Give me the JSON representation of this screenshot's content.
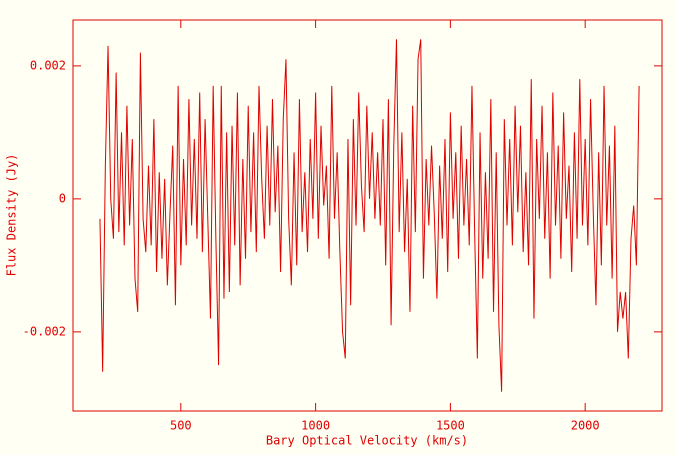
{
  "chart_data": {
    "type": "line",
    "xlabel": "Bary Optical Velocity (km/s)",
    "ylabel": "Flux Density (Jy)",
    "color": "#e00000",
    "xlim": [
      100,
      2285
    ],
    "ylim": [
      -0.00319,
      0.00269
    ],
    "xticks": [
      500,
      1000,
      1500,
      2000
    ],
    "yticks": [
      -0.002,
      0,
      0.002
    ],
    "x": [
      200,
      210,
      220,
      230,
      240,
      250,
      260,
      270,
      280,
      290,
      300,
      310,
      320,
      330,
      340,
      350,
      360,
      370,
      380,
      390,
      400,
      410,
      420,
      430,
      440,
      450,
      460,
      470,
      480,
      490,
      500,
      510,
      520,
      530,
      540,
      550,
      560,
      570,
      580,
      590,
      600,
      610,
      620,
      630,
      640,
      650,
      660,
      670,
      680,
      690,
      700,
      710,
      720,
      730,
      740,
      750,
      760,
      770,
      780,
      790,
      800,
      810,
      820,
      830,
      840,
      850,
      860,
      870,
      880,
      890,
      900,
      910,
      920,
      930,
      940,
      950,
      960,
      970,
      980,
      990,
      1000,
      1010,
      1020,
      1030,
      1040,
      1050,
      1060,
      1070,
      1080,
      1090,
      1100,
      1110,
      1120,
      1130,
      1140,
      1150,
      1160,
      1170,
      1180,
      1190,
      1200,
      1210,
      1220,
      1230,
      1240,
      1250,
      1260,
      1270,
      1280,
      1290,
      1300,
      1310,
      1320,
      1330,
      1340,
      1350,
      1360,
      1370,
      1380,
      1390,
      1400,
      1410,
      1420,
      1430,
      1440,
      1450,
      1460,
      1470,
      1480,
      1490,
      1500,
      1510,
      1520,
      1530,
      1540,
      1550,
      1560,
      1570,
      1580,
      1590,
      1600,
      1610,
      1620,
      1630,
      1640,
      1650,
      1660,
      1670,
      1680,
      1690,
      1700,
      1710,
      1720,
      1730,
      1740,
      1750,
      1760,
      1770,
      1780,
      1790,
      1800,
      1810,
      1820,
      1830,
      1840,
      1850,
      1860,
      1870,
      1880,
      1890,
      1900,
      1910,
      1920,
      1930,
      1940,
      1950,
      1960,
      1970,
      1980,
      1990,
      2000,
      2010,
      2020,
      2030,
      2040,
      2050,
      2060,
      2070,
      2080,
      2090,
      2100,
      2110,
      2120,
      2130,
      2140,
      2150,
      2160,
      2170,
      2180,
      2190,
      2200
    ],
    "values": [
      -0.0003,
      -0.0026,
      0.0005,
      0.0023,
      0,
      -0.0006,
      0.0019,
      -0.0005,
      0.001,
      -0.0007,
      0.0014,
      -0.0004,
      0.0009,
      -0.0012,
      -0.0017,
      0.0022,
      -0.0003,
      -0.0008,
      0.0005,
      -0.0007,
      0.0012,
      -0.0011,
      0.0004,
      -0.0009,
      0.0003,
      -0.0013,
      -0.0002,
      0.0008,
      -0.0016,
      0.0017,
      -0.001,
      0.0006,
      -0.0007,
      0.0015,
      -0.0004,
      0.0009,
      -0.0006,
      0.0016,
      -0.0008,
      0.0012,
      -0.0003,
      -0.0018,
      0.0017,
      -0.0006,
      -0.0025,
      0.0017,
      -0.0015,
      0.001,
      -0.0014,
      0.0011,
      -0.0007,
      0.0016,
      -0.0013,
      0.0006,
      -0.0009,
      0.0014,
      -0.0005,
      0.001,
      -0.0008,
      0.0017,
      0.0003,
      -0.0006,
      0.0011,
      -0.0004,
      0.0015,
      -0.0002,
      0.0008,
      -0.0011,
      0.0012,
      0.0021,
      -0.0003,
      -0.0013,
      0.0007,
      -0.001,
      0.0015,
      -0.0005,
      0.0004,
      -0.0008,
      0.0009,
      -0.0003,
      0.0016,
      -0.0006,
      0.0011,
      -0.0001,
      0.0005,
      -0.0009,
      0.0017,
      -0.0003,
      0.0007,
      -0.0008,
      -0.002,
      -0.0024,
      0.0009,
      -0.0016,
      0.0012,
      -0.0004,
      0.0016,
      0.0002,
      -0.0005,
      0.0014,
      0,
      0.001,
      -0.0003,
      0.0007,
      -0.0004,
      0.0012,
      -0.001,
      0.0015,
      -0.0019,
      0.0008,
      0.0024,
      -0.0005,
      0.001,
      -0.0008,
      0.0003,
      -0.0017,
      0.0014,
      -0.0005,
      0.0021,
      0.0024,
      -0.0012,
      0.0006,
      -0.0004,
      0.0008,
      -0.0002,
      -0.0015,
      0.0005,
      -0.0006,
      0.0009,
      -0.0011,
      0.0013,
      -0.0003,
      0.0007,
      -0.0009,
      0.0011,
      -0.0004,
      0.0006,
      -0.0007,
      0.0017,
      -0.0005,
      -0.0024,
      0.001,
      -0.0012,
      0.0004,
      -0.0009,
      0.0015,
      -0.0017,
      0.0007,
      -0.0019,
      -0.0029,
      0.0012,
      -0.0004,
      0.0009,
      -0.0007,
      0.0014,
      -0.0002,
      0.0011,
      -0.0008,
      0.0004,
      -0.001,
      0.0018,
      -0.0018,
      0.0009,
      -0.0003,
      0.0014,
      -0.0006,
      0.0007,
      -0.0012,
      0.0016,
      -0.0004,
      0.0008,
      -0.0009,
      0.0013,
      -0.0003,
      0.0005,
      -0.0011,
      0.001,
      -0.0006,
      0.0018,
      -0.0004,
      0.0009,
      -0.0007,
      0.0015,
      -0.0002,
      -0.0016,
      0.0007,
      -0.001,
      0.0017,
      -0.0004,
      0.0008,
      -0.0012,
      0.0011,
      -0.002,
      -0.0014,
      -0.0018,
      -0.0014,
      -0.0024,
      -0.0006,
      -0.0001,
      -0.001,
      0.0017
    ]
  }
}
